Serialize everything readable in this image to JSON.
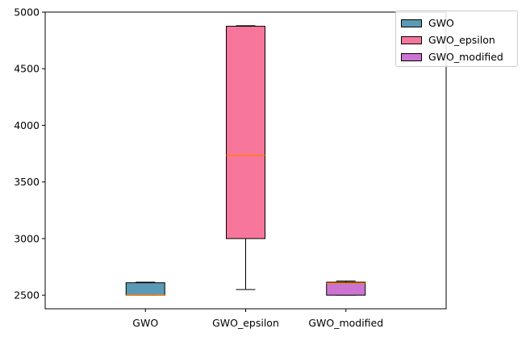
{
  "chart_data": {
    "type": "box",
    "categories": [
      "GWO",
      "GWO_epsilon",
      "GWO_modified"
    ],
    "boxes": [
      {
        "name": "GWO",
        "whisker_low": 2500,
        "q1": 2500,
        "median": 2500,
        "q3": 2610,
        "whisker_high": 2615,
        "color": "#5b9ab5",
        "median_color": "#ff7f0e"
      },
      {
        "name": "GWO_epsilon",
        "whisker_low": 2550,
        "q1": 3000,
        "median": 3735,
        "q3": 4875,
        "whisker_high": 4880,
        "color": "#f7769b",
        "median_color": "#ff7f0e"
      },
      {
        "name": "GWO_modified",
        "whisker_low": 2500,
        "q1": 2500,
        "median": 2605,
        "q3": 2615,
        "whisker_high": 2625,
        "color": "#cd74d2",
        "median_color": "#ff7f0e"
      }
    ],
    "ylim": [
      2380,
      5000
    ],
    "yticks": [
      2500,
      3000,
      3500,
      4000,
      4500,
      5000
    ],
    "ytick_labels": [
      "2500",
      "3000",
      "3500",
      "4000",
      "4500",
      "5000"
    ],
    "legend": {
      "placement": "top-right",
      "entries": [
        {
          "label": "GWO",
          "color": "#5b9ab5"
        },
        {
          "label": "GWO_epsilon",
          "color": "#f7769b"
        },
        {
          "label": "GWO_modified",
          "color": "#cd74d2"
        }
      ]
    },
    "grid": false
  }
}
